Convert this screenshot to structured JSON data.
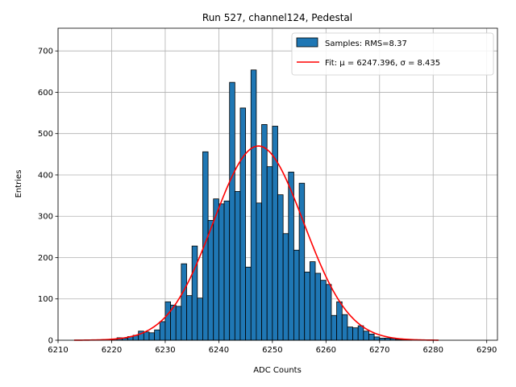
{
  "chart_data": {
    "type": "bar",
    "title": "Run 527, channel124, Pedestal",
    "xlabel": "ADC Counts",
    "ylabel": "Entries",
    "xlim": [
      6210,
      6292
    ],
    "ylim": [
      0,
      755
    ],
    "xticks": [
      6210,
      6220,
      6230,
      6240,
      6250,
      6260,
      6270,
      6280,
      6290
    ],
    "yticks": [
      0,
      100,
      200,
      300,
      400,
      500,
      600,
      700
    ],
    "grid": true,
    "legend_position": "top-right",
    "bar_color": "#1f77b4",
    "fit_color": "#ff0000",
    "bin_width": 1,
    "bins_start": [
      6220,
      6221,
      6222,
      6223,
      6224,
      6225,
      6226,
      6227,
      6228,
      6229,
      6230,
      6231,
      6232,
      6233,
      6234,
      6235,
      6236,
      6237,
      6238,
      6239,
      6240,
      6241,
      6242,
      6243,
      6244,
      6245,
      6246,
      6247,
      6248,
      6249,
      6250,
      6251,
      6252,
      6253,
      6254,
      6255,
      6256,
      6257,
      6258,
      6259,
      6260,
      6261,
      6262,
      6263,
      6264,
      6265,
      6266,
      6267,
      6268,
      6269,
      6270,
      6271,
      6272,
      6273,
      6274,
      6275
    ],
    "counts": [
      3,
      6,
      5,
      9,
      12,
      22,
      20,
      18,
      25,
      45,
      93,
      85,
      82,
      185,
      108,
      228,
      102,
      456,
      290,
      342,
      330,
      337,
      624,
      360,
      562,
      177,
      654,
      332,
      522,
      420,
      518,
      352,
      258,
      407,
      218,
      380,
      165,
      190,
      162,
      145,
      135,
      60,
      93,
      62,
      32,
      30,
      35,
      22,
      15,
      8,
      5,
      5,
      4,
      2,
      1,
      1
    ],
    "fit": {
      "label": "Fit: μ = 6247.396, σ = 8.435",
      "mu": 6247.396,
      "sigma": 8.435,
      "amplitude": 470,
      "x_range": [
        6213,
        6281
      ]
    },
    "series": [
      {
        "name": "Samples: RMS=8.37",
        "kind": "histogram"
      },
      {
        "name": "Fit: μ = 6247.396, σ = 8.435",
        "kind": "line"
      }
    ]
  }
}
